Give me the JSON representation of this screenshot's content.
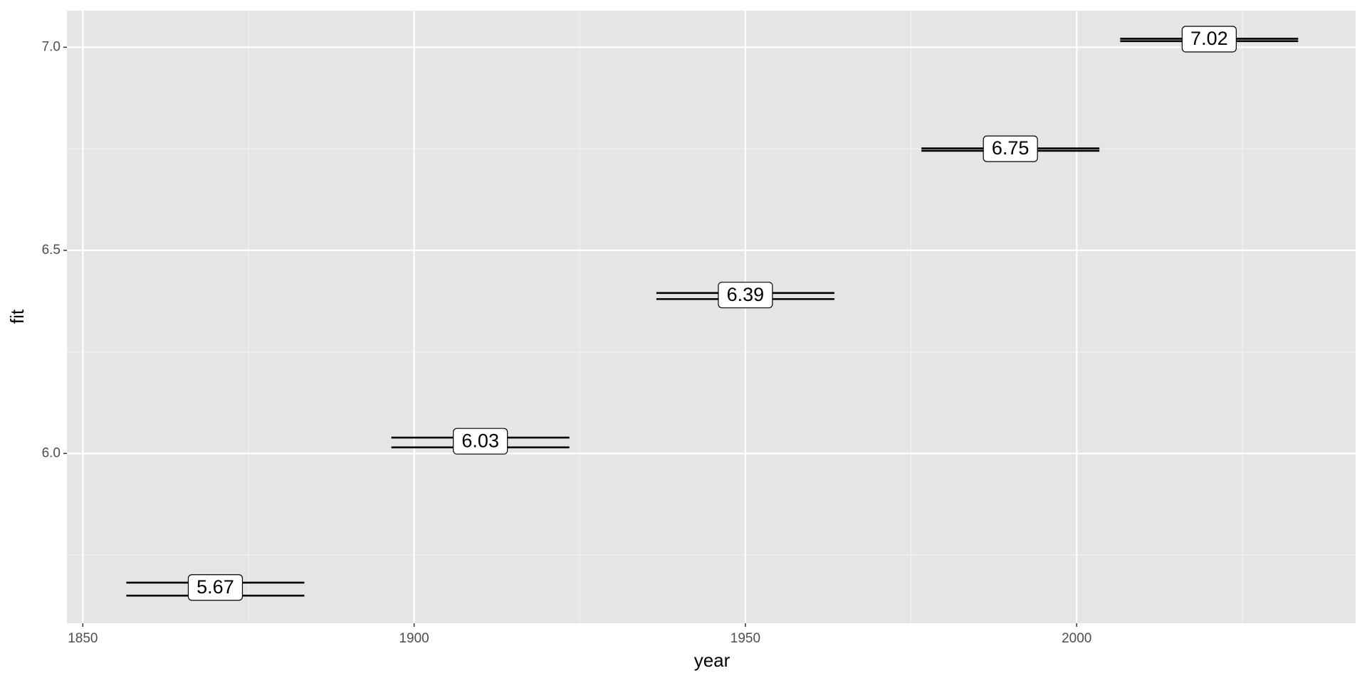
{
  "chart_data": {
    "type": "errorbar",
    "x_label": "year",
    "y_label": "fit",
    "x": [
      1870,
      1910,
      1950,
      1990,
      2020
    ],
    "values": [
      5.67,
      6.03,
      6.39,
      6.75,
      7.02
    ],
    "lower": [
      5.65,
      6.015,
      6.38,
      6.745,
      7.015
    ],
    "upper": [
      5.682,
      6.039,
      6.395,
      6.751,
      7.021
    ],
    "color": "#000000",
    "xlim": [
      1847.6,
      2042.1
    ],
    "xticks": [
      1850,
      1900,
      1950,
      2000
    ],
    "ylim": [
      5.582,
      7.09
    ],
    "yticks": [
      {
        "value": 6,
        "label": "6.0"
      },
      {
        "value": 6.5,
        "label": "6.5"
      },
      {
        "value": 7,
        "label": "7.0"
      }
    ],
    "x_minor_breaks": [
      1875,
      1925,
      1975,
      2025
    ],
    "y_minor_breaks": [
      5.75,
      6.25,
      6.75
    ],
    "grid": true
  }
}
